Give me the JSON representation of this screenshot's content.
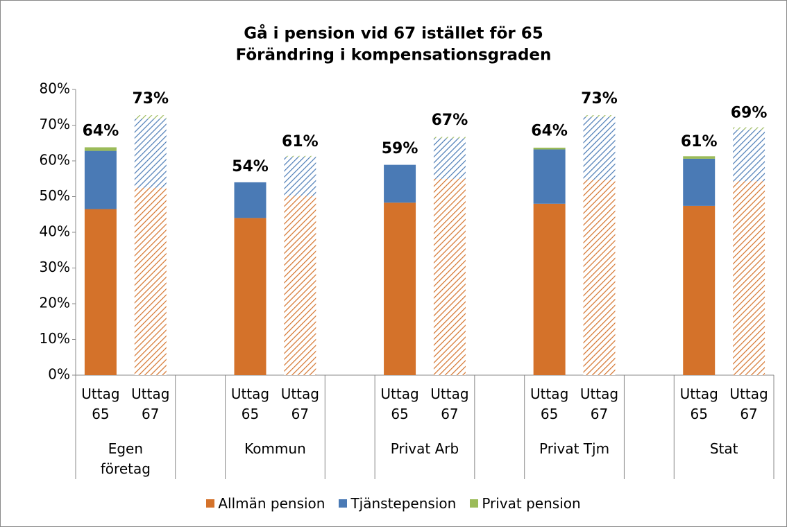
{
  "chart_data": {
    "type": "stacked_bar",
    "title": "Gå i pension vid 67 istället för 65",
    "subtitle": "Förändring i kompensationsgraden",
    "categories": [
      "Uttag 65",
      "Uttag 67",
      "Uttag 65",
      "Uttag 67",
      "Uttag 65",
      "Uttag 67",
      "Uttag 65",
      "Uttag 67",
      "Uttag 65",
      "Uttag 67"
    ],
    "groups": [
      "Egen företag",
      "Kommun",
      "Privat Arb",
      "Privat Tjm",
      "Stat"
    ],
    "hatched": [
      false,
      true,
      false,
      true,
      false,
      true,
      false,
      true,
      false,
      true
    ],
    "series": [
      {
        "name": "Allmän pension",
        "color": "#d4722a",
        "values": [
          46.5,
          52.5,
          44,
          50.2,
          48.3,
          55,
          48,
          54.7,
          47.4,
          54.3
        ]
      },
      {
        "name": "Tjänstepension",
        "color": "#4a7ab5",
        "values": [
          16.3,
          19.3,
          10,
          10.9,
          10.6,
          11.3,
          15.2,
          17.6,
          13.2,
          14.4
        ]
      },
      {
        "name": "Privat pension",
        "color": "#9bbb59",
        "values": [
          1.0,
          1.0,
          0,
          0.3,
          0,
          0.4,
          0.5,
          0.5,
          0.7,
          0.7
        ]
      }
    ],
    "totals": [
      64,
      73,
      54,
      61,
      59,
      67,
      64,
      73,
      61,
      69
    ],
    "totals_labels": [
      "64%",
      "73%",
      "54%",
      "61%",
      "59%",
      "67%",
      "64%",
      "73%",
      "61%",
      "69%"
    ],
    "ylim": [
      0,
      80
    ],
    "yticks": [
      {
        "value": 0,
        "label": "0%"
      },
      {
        "value": 10,
        "label": "10%"
      },
      {
        "value": 20,
        "label": "20%"
      },
      {
        "value": 30,
        "label": "30%"
      },
      {
        "value": 40,
        "label": "40%"
      },
      {
        "value": 50,
        "label": "50%"
      },
      {
        "value": 60,
        "label": "60%"
      },
      {
        "value": 70,
        "label": "70%"
      },
      {
        "value": 80,
        "label": "80%"
      }
    ],
    "grid": false,
    "legend": "bottom"
  }
}
